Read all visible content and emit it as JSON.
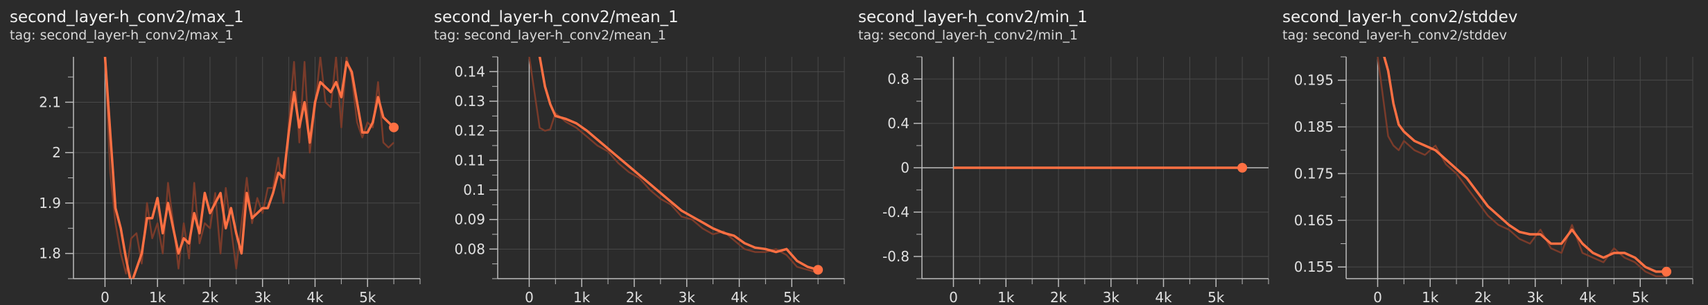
{
  "colors": {
    "background": "#2b2b2b",
    "grid": "#4a4a4a",
    "axis": "#bdbdbd",
    "tick_text": "#e0e0e0",
    "series_smoothed": "#ff7043",
    "series_raw": "#7a3b2a"
  },
  "chart_data": [
    {
      "type": "line",
      "title": "second_layer-h_conv2/max_1",
      "tag": "tag: second_layer-h_conv2/max_1",
      "xlabel": "",
      "ylabel": "",
      "xlim": [
        -600,
        6000
      ],
      "ylim": [
        1.75,
        2.19
      ],
      "xticks": [
        0,
        1000,
        2000,
        3000,
        4000,
        5000
      ],
      "xtick_labels": [
        "0",
        "1k",
        "2k",
        "3k",
        "4k",
        "5k"
      ],
      "yticks": [
        1.8,
        1.9,
        2.0,
        2.1
      ],
      "ytick_labels": [
        "1.8",
        "1.9",
        "2",
        "2.1"
      ],
      "grid": true,
      "series": [
        {
          "style": "smoothed",
          "x": [
            0,
            100,
            200,
            300,
            400,
            500,
            600,
            700,
            800,
            900,
            1000,
            1100,
            1200,
            1300,
            1400,
            1500,
            1600,
            1700,
            1800,
            1900,
            2000,
            2100,
            2200,
            2300,
            2400,
            2500,
            2600,
            2700,
            2800,
            2900,
            3000,
            3100,
            3200,
            3300,
            3400,
            3500,
            3600,
            3700,
            3800,
            3900,
            4000,
            4100,
            4200,
            4300,
            4400,
            4500,
            4600,
            4700,
            4800,
            4900,
            5000,
            5100,
            5200,
            5300,
            5400,
            5500
          ],
          "y": [
            2.19,
            2.04,
            1.89,
            1.85,
            1.79,
            1.74,
            1.77,
            1.8,
            1.87,
            1.87,
            1.91,
            1.84,
            1.9,
            1.85,
            1.8,
            1.83,
            1.82,
            1.88,
            1.84,
            1.92,
            1.88,
            1.9,
            1.92,
            1.85,
            1.89,
            1.84,
            1.8,
            1.92,
            1.87,
            1.88,
            1.89,
            1.89,
            1.92,
            1.96,
            1.95,
            2.04,
            2.12,
            2.05,
            2.1,
            2.02,
            2.1,
            2.14,
            2.13,
            2.12,
            2.14,
            2.11,
            2.18,
            2.16,
            2.1,
            2.04,
            2.04,
            2.06,
            2.11,
            2.07,
            2.06,
            2.05
          ]
        },
        {
          "style": "raw",
          "x": [
            0,
            100,
            200,
            300,
            400,
            500,
            600,
            700,
            800,
            900,
            1000,
            1100,
            1200,
            1300,
            1400,
            1500,
            1600,
            1700,
            1800,
            1900,
            2000,
            2100,
            2200,
            2300,
            2400,
            2500,
            2600,
            2700,
            2800,
            2900,
            3000,
            3100,
            3200,
            3300,
            3400,
            3500,
            3600,
            3700,
            3800,
            3900,
            4000,
            4100,
            4200,
            4300,
            4400,
            4500,
            4600,
            4700,
            4800,
            4900,
            5000,
            5100,
            5200,
            5300,
            5400,
            5500
          ],
          "y": [
            2.19,
            1.96,
            1.86,
            1.8,
            1.76,
            1.83,
            1.84,
            1.78,
            1.9,
            1.83,
            1.86,
            1.8,
            1.94,
            1.86,
            1.77,
            1.86,
            1.79,
            1.94,
            1.82,
            1.86,
            1.85,
            1.92,
            1.8,
            1.93,
            1.85,
            1.77,
            1.86,
            1.95,
            1.86,
            1.91,
            1.88,
            1.93,
            1.93,
            1.99,
            1.9,
            2.06,
            2.18,
            2.02,
            2.18,
            2.0,
            2.09,
            2.19,
            2.1,
            2.09,
            2.19,
            2.05,
            2.19,
            2.15,
            2.06,
            2.03,
            2.06,
            2.05,
            2.14,
            2.02,
            2.01,
            2.02
          ]
        }
      ],
      "last_point": {
        "x": 5500,
        "y": 2.05
      }
    },
    {
      "type": "line",
      "title": "second_layer-h_conv2/mean_1",
      "tag": "tag: second_layer-h_conv2/mean_1",
      "xlabel": "",
      "ylabel": "",
      "xlim": [
        -600,
        6000
      ],
      "ylim": [
        0.07,
        0.145
      ],
      "xticks": [
        0,
        1000,
        2000,
        3000,
        4000,
        5000
      ],
      "xtick_labels": [
        "0",
        "1k",
        "2k",
        "3k",
        "4k",
        "5k"
      ],
      "yticks": [
        0.08,
        0.09,
        0.1,
        0.11,
        0.12,
        0.13,
        0.14
      ],
      "ytick_labels": [
        "0.08",
        "0.09",
        "0.1",
        "0.11",
        "0.12",
        "0.13",
        "0.14"
      ],
      "grid": true,
      "series": [
        {
          "style": "smoothed",
          "x": [
            0,
            200,
            300,
            400,
            500,
            700,
            900,
            1100,
            1300,
            1500,
            1700,
            1900,
            2100,
            2300,
            2500,
            2700,
            2900,
            3100,
            3300,
            3500,
            3700,
            3900,
            4100,
            4300,
            4500,
            4700,
            4900,
            5100,
            5300,
            5500
          ],
          "y": [
            0.155,
            0.145,
            0.135,
            0.129,
            0.125,
            0.124,
            0.1225,
            0.12,
            0.117,
            0.114,
            0.111,
            0.108,
            0.105,
            0.102,
            0.099,
            0.096,
            0.093,
            0.091,
            0.089,
            0.087,
            0.0855,
            0.0845,
            0.082,
            0.0805,
            0.08,
            0.079,
            0.08,
            0.076,
            0.074,
            0.073
          ]
        },
        {
          "style": "raw",
          "x": [
            0,
            200,
            300,
            400,
            500,
            700,
            900,
            1100,
            1300,
            1500,
            1700,
            1900,
            2100,
            2300,
            2500,
            2700,
            2900,
            3100,
            3300,
            3500,
            3700,
            3900,
            4100,
            4300,
            4500,
            4700,
            4900,
            5100,
            5300,
            5500
          ],
          "y": [
            0.145,
            0.121,
            0.12,
            0.1205,
            0.126,
            0.123,
            0.121,
            0.118,
            0.115,
            0.113,
            0.109,
            0.106,
            0.104,
            0.1,
            0.097,
            0.095,
            0.091,
            0.09,
            0.087,
            0.085,
            0.086,
            0.083,
            0.08,
            0.079,
            0.079,
            0.08,
            0.078,
            0.074,
            0.073,
            0.072
          ]
        }
      ],
      "last_point": {
        "x": 5500,
        "y": 0.073
      }
    },
    {
      "type": "line",
      "title": "second_layer-h_conv2/min_1",
      "tag": "tag: second_layer-h_conv2/min_1",
      "xlabel": "",
      "ylabel": "",
      "xlim": [
        -600,
        6000
      ],
      "ylim": [
        -1.0,
        1.0
      ],
      "xticks": [
        0,
        1000,
        2000,
        3000,
        4000,
        5000
      ],
      "xtick_labels": [
        "0",
        "1k",
        "2k",
        "3k",
        "4k",
        "5k"
      ],
      "yticks": [
        -0.8,
        -0.4,
        0,
        0.4,
        0.8
      ],
      "ytick_labels": [
        "-0.8",
        "-0.4",
        "0",
        "0.4",
        "0.8"
      ],
      "grid": true,
      "series": [
        {
          "style": "smoothed",
          "x": [
            0,
            5500
          ],
          "y": [
            0,
            0
          ]
        }
      ],
      "last_point": {
        "x": 5500,
        "y": 0
      }
    },
    {
      "type": "line",
      "title": "second_layer-h_conv2/stddev",
      "tag": "tag: second_layer-h_conv2/stddev",
      "xlabel": "",
      "ylabel": "",
      "xlim": [
        -600,
        6000
      ],
      "ylim": [
        0.1525,
        0.2
      ],
      "xticks": [
        0,
        1000,
        2000,
        3000,
        4000,
        5000
      ],
      "xtick_labels": [
        "0",
        "1k",
        "2k",
        "3k",
        "4k",
        "5k"
      ],
      "yticks": [
        0.155,
        0.165,
        0.175,
        0.185,
        0.195
      ],
      "ytick_labels": [
        "0.155",
        "0.165",
        "0.175",
        "0.185",
        "0.195"
      ],
      "grid": true,
      "series": [
        {
          "style": "smoothed",
          "x": [
            0,
            200,
            300,
            400,
            500,
            700,
            900,
            1100,
            1300,
            1500,
            1700,
            1900,
            2100,
            2300,
            2500,
            2700,
            2900,
            3100,
            3300,
            3500,
            3700,
            3900,
            4100,
            4300,
            4500,
            4700,
            4900,
            5100,
            5300,
            5500
          ],
          "y": [
            0.205,
            0.197,
            0.19,
            0.1855,
            0.184,
            0.182,
            0.181,
            0.18,
            0.178,
            0.176,
            0.174,
            0.171,
            0.168,
            0.166,
            0.164,
            0.1625,
            0.162,
            0.162,
            0.16,
            0.16,
            0.163,
            0.16,
            0.158,
            0.157,
            0.158,
            0.158,
            0.157,
            0.155,
            0.154,
            0.154
          ]
        },
        {
          "style": "raw",
          "x": [
            0,
            200,
            300,
            400,
            500,
            700,
            900,
            1100,
            1300,
            1500,
            1700,
            1900,
            2100,
            2300,
            2500,
            2700,
            2900,
            3100,
            3300,
            3500,
            3700,
            3900,
            4100,
            4300,
            4500,
            4700,
            4900,
            5100,
            5300,
            5500
          ],
          "y": [
            0.2,
            0.183,
            0.181,
            0.18,
            0.182,
            0.18,
            0.179,
            0.181,
            0.177,
            0.175,
            0.172,
            0.169,
            0.166,
            0.164,
            0.163,
            0.161,
            0.16,
            0.163,
            0.159,
            0.158,
            0.164,
            0.158,
            0.157,
            0.156,
            0.159,
            0.157,
            0.156,
            0.154,
            0.153,
            0.153
          ]
        }
      ],
      "last_point": {
        "x": 5500,
        "y": 0.154
      }
    }
  ]
}
